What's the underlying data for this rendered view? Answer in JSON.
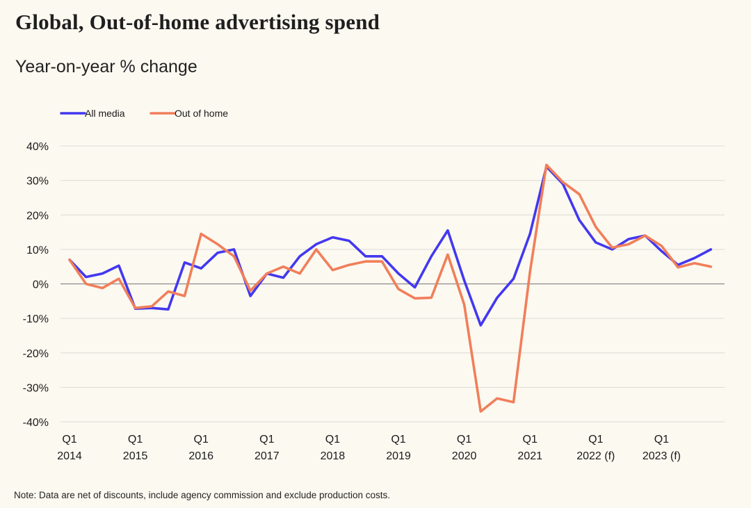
{
  "title": "Global, Out-of-home advertising spend",
  "subtitle": "Year-on-year % change",
  "note": "Note: Data are net of discounts, include agency commission and exclude production costs.",
  "colors": {
    "background": "#fcf9f1",
    "all_media": "#4338f0",
    "out_of_home": "#f07f5a",
    "grid": "#dcdad3",
    "zero_line": "#8a8a8a"
  },
  "chart_data": {
    "type": "line",
    "title": "Global, Out-of-home advertising spend",
    "subtitle": "Year-on-year % change",
    "legend_placement": "top-left",
    "grid": true,
    "ylim": [
      -40,
      40
    ],
    "y_ticks": [
      40,
      30,
      20,
      10,
      0,
      -10,
      -20,
      -30,
      -40
    ],
    "y_tick_labels": [
      "40%",
      "30%",
      "20%",
      "10%",
      "0%",
      "-10%",
      "-20%",
      "-30%",
      "-40%"
    ],
    "x": [
      "2014 Q1",
      "2014 Q2",
      "2014 Q3",
      "2014 Q4",
      "2015 Q1",
      "2015 Q2",
      "2015 Q3",
      "2015 Q4",
      "2016 Q1",
      "2016 Q2",
      "2016 Q3",
      "2016 Q4",
      "2017 Q1",
      "2017 Q2",
      "2017 Q3",
      "2017 Q4",
      "2018 Q1",
      "2018 Q2",
      "2018 Q3",
      "2018 Q4",
      "2019 Q1",
      "2019 Q2",
      "2019 Q3",
      "2019 Q4",
      "2020 Q1",
      "2020 Q2",
      "2020 Q3",
      "2020 Q4",
      "2021 Q1",
      "2021 Q2",
      "2021 Q3",
      "2021 Q4",
      "2022 Q1",
      "2022 Q2",
      "2022 Q3",
      "2022 Q4",
      "2023 Q1",
      "2023 Q2",
      "2023 Q3",
      "2023 Q4"
    ],
    "x_tick_labels": [
      {
        "index": 0,
        "quarter": "Q1",
        "year": "2014"
      },
      {
        "index": 4,
        "quarter": "Q1",
        "year": "2015"
      },
      {
        "index": 8,
        "quarter": "Q1",
        "year": "2016"
      },
      {
        "index": 12,
        "quarter": "Q1",
        "year": "2017"
      },
      {
        "index": 16,
        "quarter": "Q1",
        "year": "2018"
      },
      {
        "index": 20,
        "quarter": "Q1",
        "year": "2019"
      },
      {
        "index": 24,
        "quarter": "Q1",
        "year": "2020"
      },
      {
        "index": 28,
        "quarter": "Q1",
        "year": "2021"
      },
      {
        "index": 32,
        "quarter": "Q1",
        "year": "2022 (f)"
      },
      {
        "index": 36,
        "quarter": "Q1",
        "year": "2023 (f)"
      }
    ],
    "series": [
      {
        "name": "All media",
        "color": "#4338f0",
        "values": [
          7,
          2,
          3,
          5.3,
          -7.2,
          -7,
          -7.4,
          6.2,
          4.5,
          9,
          10,
          -3.5,
          3,
          1.8,
          8,
          11.5,
          13.5,
          12.5,
          8,
          8,
          3,
          -1,
          8,
          15.5,
          1,
          -12,
          -4,
          1.5,
          14.5,
          34,
          29,
          18.5,
          12,
          10,
          13,
          14,
          9.5,
          5.5,
          7.5,
          10
        ]
      },
      {
        "name": "Out of home",
        "color": "#f07f5a",
        "values": [
          7,
          0,
          -1.2,
          1.5,
          -7,
          -6.5,
          -2.2,
          -3.5,
          14.5,
          11.5,
          8,
          -2,
          3,
          5,
          3,
          10,
          4,
          5.5,
          6.5,
          6.5,
          -1.5,
          -4.2,
          -4,
          8.5,
          -6,
          -37,
          -33.2,
          -34.3,
          3.5,
          34.5,
          29.5,
          26,
          16.5,
          10.5,
          11.5,
          14,
          11,
          4.8,
          6,
          5
        ]
      }
    ]
  }
}
